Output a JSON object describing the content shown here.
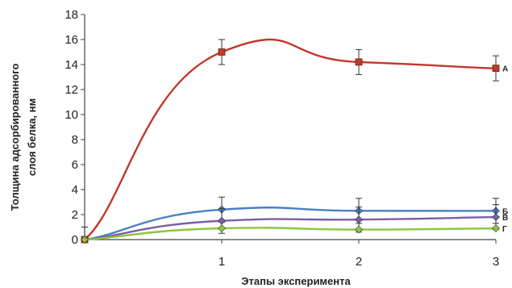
{
  "chart_data": {
    "type": "line",
    "x": [
      0,
      1,
      2,
      3
    ],
    "x_tick_labels": [
      "1",
      "2",
      "3"
    ],
    "y_ticks": [
      0,
      2,
      4,
      6,
      8,
      10,
      12,
      14,
      16,
      18
    ],
    "ylim": [
      0,
      18
    ],
    "xlim": [
      0,
      3
    ],
    "xlabel": "Этапы эксперимента",
    "ylabel_line1": "Толщина адсорбированного",
    "ylabel_line2": "слоя белка, нм",
    "series": [
      {
        "name": "А",
        "color": "#c0392b",
        "marker": "square",
        "values": [
          0,
          15.0,
          14.2,
          13.7
        ],
        "errors": [
          1.0,
          1.0,
          1.0,
          1.0
        ]
      },
      {
        "name": "Б",
        "color": "#4a7fc6",
        "marker": "diamond",
        "values": [
          0,
          2.4,
          2.3,
          2.3
        ],
        "errors": [
          0,
          1.0,
          1.0,
          1.0
        ]
      },
      {
        "name": "В",
        "color": "#7b5ea7",
        "marker": "diamond",
        "values": [
          0,
          1.5,
          1.6,
          1.8
        ],
        "errors": [
          0,
          1.0,
          1.0,
          1.0
        ]
      },
      {
        "name": "Г",
        "color": "#8dc63f",
        "marker": "diamond",
        "values": [
          0,
          0.9,
          0.8,
          0.9
        ],
        "errors": [
          0,
          0,
          0,
          0
        ]
      }
    ]
  }
}
